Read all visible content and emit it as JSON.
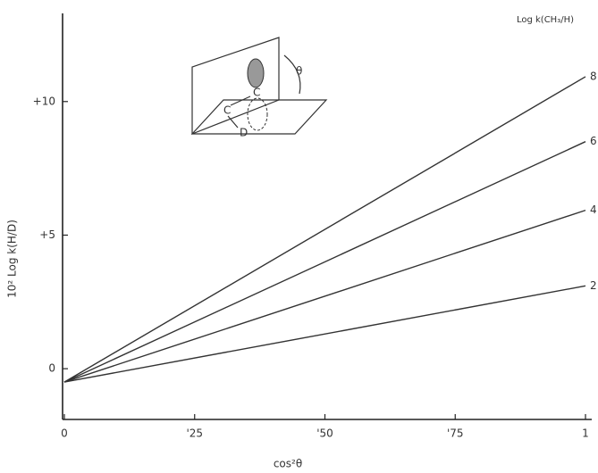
{
  "chart_data": {
    "type": "line",
    "x_label": "cos²θ",
    "y_label": "10² Log k(H/D)",
    "legend_title": "Log k(CH₃/H)",
    "x": [
      0,
      1
    ],
    "series": [
      {
        "name": "8",
        "color": "#333333",
        "values": [
          -0.5,
          10.93
        ]
      },
      {
        "name": "6",
        "color": "#333333",
        "values": [
          -0.5,
          8.5
        ]
      },
      {
        "name": "4",
        "color": "#333333",
        "values": [
          -0.5,
          5.93
        ]
      },
      {
        "name": "2",
        "color": "#333333",
        "values": [
          -0.5,
          3.1
        ]
      }
    ],
    "xlim": [
      0,
      1
    ],
    "xticks": [
      0,
      {
        "value": 0.25,
        "label": "'25"
      },
      {
        "value": 0.5,
        "label": "'50"
      },
      {
        "value": 0.75,
        "label": "'75"
      },
      1
    ],
    "ylim": [
      -1.9,
      13.3
    ],
    "yticks": [
      0,
      {
        "value": 5,
        "label": "+5"
      },
      {
        "value": 10,
        "label": "+10"
      }
    ],
    "grid": false
  },
  "inset": {
    "labels": [
      "C",
      "C",
      "D",
      "θ"
    ]
  }
}
